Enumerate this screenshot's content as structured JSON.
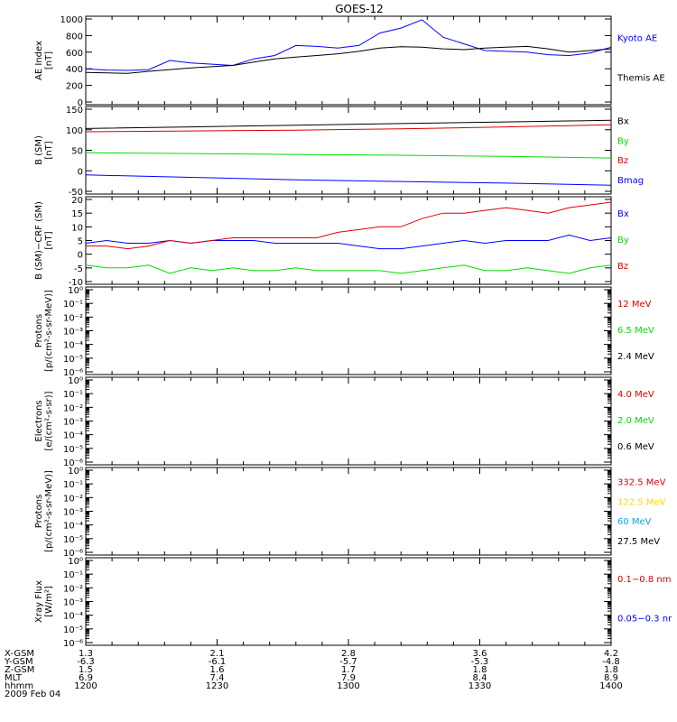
{
  "title": "GOES-12",
  "colors": {
    "black": "#000000",
    "blue": "#0000ff",
    "red": "#dd0000",
    "green": "#00dd00",
    "yellow": "#ffd800",
    "cyan": "#00aaee"
  },
  "chart_data": [
    {
      "type": "line",
      "ylabel": [
        "AE Index",
        "[nT]"
      ],
      "ylim": [
        0,
        1000
      ],
      "yticks": [
        "0",
        "200",
        "400",
        "600",
        "800",
        "1000"
      ],
      "x": [
        1200,
        1208,
        1216,
        1224,
        1232,
        1240,
        1248,
        1256,
        1264,
        1272,
        1280,
        1288,
        1296,
        1304,
        1312,
        1320,
        1328,
        1336,
        1344,
        1352,
        1360,
        1368,
        1376,
        1384,
        1392,
        1400
      ],
      "series": [
        {
          "name": "Kyoto AE",
          "color": "#0000ff",
          "values": [
            400,
            385,
            380,
            390,
            500,
            470,
            455,
            440,
            520,
            560,
            680,
            670,
            650,
            680,
            830,
            890,
            990,
            780,
            700,
            620,
            610,
            600,
            570,
            560,
            590,
            660
          ]
        },
        {
          "name": "Themis AE",
          "color": "#000000",
          "values": [
            355,
            350,
            345,
            370,
            390,
            410,
            425,
            440,
            480,
            520,
            540,
            560,
            580,
            610,
            650,
            665,
            660,
            640,
            630,
            650,
            660,
            670,
            640,
            600,
            620,
            640
          ]
        }
      ]
    },
    {
      "type": "line",
      "ylabel": [
        "B (SM)",
        "[nT]"
      ],
      "ylim": [
        -50,
        150
      ],
      "yticks": [
        "-50",
        "0",
        "50",
        "100",
        "150"
      ],
      "x": [
        1200,
        1240,
        1280,
        1320,
        1360,
        1400
      ],
      "series": [
        {
          "name": "Bx",
          "color": "#000000",
          "values": [
            103,
            107,
            111,
            115,
            119,
            123
          ]
        },
        {
          "name": "By",
          "color": "#00dd00",
          "values": [
            44,
            42,
            40,
            38,
            35,
            31
          ]
        },
        {
          "name": "Bz",
          "color": "#dd0000",
          "values": [
            95,
            97,
            99,
            102,
            107,
            112
          ]
        },
        {
          "name": "Bmag",
          "color": "#0000ff",
          "values": [
            -10,
            -16,
            -22,
            -26,
            -30,
            -35
          ]
        }
      ]
    },
    {
      "type": "line",
      "ylabel": [
        "B (SM)−CRF (SM)",
        "[nT]"
      ],
      "ylim": [
        -10,
        20
      ],
      "yticks": [
        "-10",
        "-5",
        "0",
        "5",
        "10",
        "15",
        "20"
      ],
      "x": [
        1200,
        1208,
        1216,
        1224,
        1232,
        1240,
        1248,
        1256,
        1264,
        1272,
        1280,
        1288,
        1296,
        1304,
        1312,
        1320,
        1328,
        1336,
        1344,
        1352,
        1360,
        1368,
        1376,
        1384,
        1392,
        1400
      ],
      "series": [
        {
          "name": "Bx",
          "color": "#0000ff",
          "values": [
            4,
            5,
            4,
            4,
            5,
            4,
            5,
            5,
            5,
            4,
            4,
            4,
            4,
            3,
            2,
            2,
            3,
            4,
            5,
            4,
            5,
            5,
            5,
            7,
            5,
            6
          ]
        },
        {
          "name": "By",
          "color": "#00dd00",
          "values": [
            -4,
            -5,
            -5,
            -4,
            -7,
            -5,
            -6,
            -5,
            -6,
            -6,
            -5,
            -6,
            -6,
            -6,
            -6,
            -7,
            -6,
            -5,
            -4,
            -6,
            -6,
            -5,
            -6,
            -7,
            -5,
            -4
          ]
        },
        {
          "name": "Bz",
          "color": "#dd0000",
          "values": [
            3,
            3,
            2,
            3,
            5,
            4,
            5,
            6,
            6,
            6,
            6,
            6,
            8,
            9,
            10,
            10,
            13,
            15,
            15,
            16,
            17,
            16,
            15,
            17,
            18,
            19
          ]
        }
      ]
    },
    {
      "type": "line",
      "ylabel": [
        "Protons",
        "[p/(cm²-s-sr-MeV)]"
      ],
      "log": true,
      "yticks": [
        "10⁰",
        "10⁻¹",
        "10⁻²",
        "10⁻³",
        "10⁻⁴",
        "10⁻⁵",
        "10⁻⁶"
      ],
      "series": [
        {
          "name": "12 MeV",
          "color": "#dd0000"
        },
        {
          "name": "6.5 MeV",
          "color": "#00dd00"
        },
        {
          "name": "2.4 MeV",
          "color": "#000000"
        }
      ]
    },
    {
      "type": "line",
      "ylabel": [
        "Electrons",
        "[e/(cm²-s-sr)]"
      ],
      "log": true,
      "yticks": [
        "10⁰",
        "10⁻¹",
        "10⁻²",
        "10⁻³",
        "10⁻⁴",
        "10⁻⁵",
        "10⁻⁶"
      ],
      "series": [
        {
          "name": "4.0 MeV",
          "color": "#dd0000"
        },
        {
          "name": "2.0 MeV",
          "color": "#00dd00"
        },
        {
          "name": "0.6 MeV",
          "color": "#000000"
        }
      ]
    },
    {
      "type": "line",
      "ylabel": [
        "Protons",
        "[p/(cm²-s-sr-MeV)]"
      ],
      "log": true,
      "yticks": [
        "10⁰",
        "10⁻¹",
        "10⁻²",
        "10⁻³",
        "10⁻⁴",
        "10⁻⁵",
        "10⁻⁶"
      ],
      "series": [
        {
          "name": "332.5 MeV",
          "color": "#dd0000"
        },
        {
          "name": "122.5 MeV",
          "color": "#ffd800"
        },
        {
          "name": "60 MeV",
          "color": "#00aaee"
        },
        {
          "name": "27.5 MeV",
          "color": "#000000"
        }
      ]
    },
    {
      "type": "line",
      "ylabel": [
        "Xray Flux",
        "[W/m²]"
      ],
      "log": true,
      "yticks": [
        "10⁰",
        "10⁻¹",
        "10⁻²",
        "10⁻³",
        "10⁻⁴",
        "10⁻⁵",
        "10⁻⁶"
      ],
      "series": [
        {
          "name": "0.1−0.8 nm",
          "color": "#dd0000"
        },
        {
          "name": "0.05−0.3 nr",
          "color": "#0000ff"
        }
      ]
    }
  ],
  "x_axis": {
    "range": [
      1200,
      1400
    ],
    "rows": [
      {
        "label": "X-GSM",
        "values": [
          "1.3",
          "2.1",
          "2.8",
          "3.6",
          "4.2"
        ]
      },
      {
        "label": "Y-GSM",
        "values": [
          "-6.3",
          "-6.1",
          "-5.7",
          "-5.3",
          "-4.8"
        ]
      },
      {
        "label": "Z-GSM",
        "values": [
          "1.5",
          "1.6",
          "1.7",
          "1.8",
          "1.8"
        ]
      },
      {
        "label": "MLT",
        "values": [
          "6.9",
          "7.4",
          "7.9",
          "8.4",
          "8.9"
        ]
      },
      {
        "label": "hhmm",
        "values": [
          "1200",
          "1230",
          "1300",
          "1330",
          "1400"
        ]
      }
    ],
    "date": "2009 Feb 04"
  }
}
